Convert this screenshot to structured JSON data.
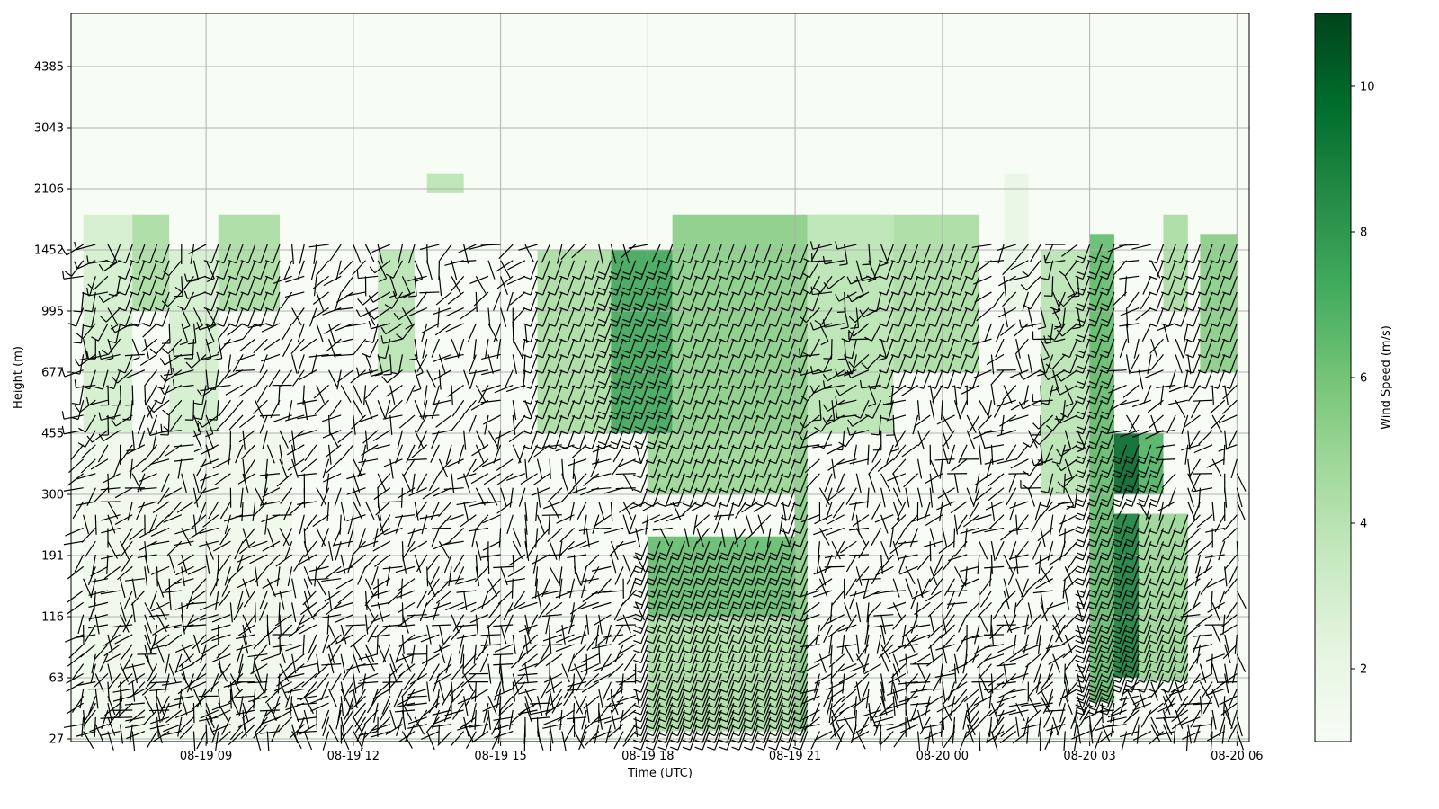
{
  "chart_data": {
    "type": "heatmap",
    "xlabel": "Time (UTC)",
    "ylabel": "Height (m)",
    "colorbar_label": "Wind Speed (m/s)",
    "colormap": "Greens",
    "x_range": [
      "2024-08-19T06:15",
      "2024-08-20T06:15"
    ],
    "x_ticks": [
      {
        "time": "2024-08-19T09:00",
        "label": "08-19 09"
      },
      {
        "time": "2024-08-19T12:00",
        "label": "08-19 12"
      },
      {
        "time": "2024-08-19T15:00",
        "label": "08-19 15"
      },
      {
        "time": "2024-08-19T18:00",
        "label": "08-19 18"
      },
      {
        "time": "2024-08-19T21:00",
        "label": "08-19 21"
      },
      {
        "time": "2024-08-20T00:00",
        "label": "08-20 00"
      },
      {
        "time": "2024-08-20T03:00",
        "label": "08-20 03"
      },
      {
        "time": "2024-08-20T06:00",
        "label": "08-20 06"
      }
    ],
    "height_levels_m": [
      27,
      63,
      116,
      191,
      300,
      455,
      677,
      995,
      1452,
      2106,
      3043,
      4385
    ],
    "colorbar_ticks": [
      2,
      4,
      6,
      8,
      10
    ],
    "colorbar_range": [
      1.0,
      11.0
    ],
    "grid": true,
    "wind_speed_blocks": [
      {
        "t0": "2024-08-19T06:30",
        "t1": "2024-08-19T07:30",
        "h0": 455,
        "h1": 1800,
        "speed": 3.0
      },
      {
        "t0": "2024-08-19T07:30",
        "t1": "2024-08-19T08:15",
        "h0": 995,
        "h1": 1800,
        "speed": 4.5
      },
      {
        "t0": "2024-08-19T08:15",
        "t1": "2024-08-19T09:15",
        "h0": 455,
        "h1": 1452,
        "speed": 3.0
      },
      {
        "t0": "2024-08-19T09:15",
        "t1": "2024-08-19T10:30",
        "h0": 995,
        "h1": 1800,
        "speed": 4.5
      },
      {
        "t0": "2024-08-19T06:30",
        "t1": "2024-08-19T10:45",
        "h0": 27,
        "h1": 455,
        "speed": 1.6
      },
      {
        "t0": "2024-08-19T12:30",
        "t1": "2024-08-19T13:15",
        "h0": 677,
        "h1": 1452,
        "speed": 4.0
      },
      {
        "t0": "2024-08-19T13:30",
        "t1": "2024-08-19T14:15",
        "h0": 2050,
        "h1": 2300,
        "speed": 4.0
      },
      {
        "t0": "2024-08-19T15:45",
        "t1": "2024-08-19T17:15",
        "h0": 455,
        "h1": 1452,
        "speed": 4.5
      },
      {
        "t0": "2024-08-19T17:15",
        "t1": "2024-08-19T18:30",
        "h0": 455,
        "h1": 1452,
        "speed": 7.5
      },
      {
        "t0": "2024-08-19T18:30",
        "t1": "2024-08-19T21:00",
        "h0": 455,
        "h1": 1800,
        "speed": 5.5
      },
      {
        "t0": "2024-08-19T18:00",
        "t1": "2024-08-19T21:00",
        "h0": 300,
        "h1": 455,
        "speed": 5.0
      },
      {
        "t0": "2024-08-19T18:00",
        "t1": "2024-08-19T21:00",
        "h0": 116,
        "h1": 220,
        "speed": 6.5
      },
      {
        "t0": "2024-08-19T18:00",
        "t1": "2024-08-19T21:00",
        "h0": 30,
        "h1": 116,
        "speed": 4.5
      },
      {
        "t0": "2024-08-19T21:00",
        "t1": "2024-08-19T21:15",
        "h0": 30,
        "h1": 1800,
        "speed": 5.5
      },
      {
        "t0": "2024-08-19T21:15",
        "t1": "2024-08-19T23:00",
        "h0": 455,
        "h1": 1800,
        "speed": 4.0
      },
      {
        "t0": "2024-08-19T23:00",
        "t1": "2024-08-20T00:45",
        "h0": 677,
        "h1": 1800,
        "speed": 4.5
      },
      {
        "t0": "2024-08-20T01:15",
        "t1": "2024-08-20T01:45",
        "h0": 1000,
        "h1": 2300,
        "speed": 2.0
      },
      {
        "t0": "2024-08-20T02:00",
        "t1": "2024-08-20T03:15",
        "h0": 300,
        "h1": 1452,
        "speed": 4.0
      },
      {
        "t0": "2024-08-20T03:00",
        "t1": "2024-08-20T03:30",
        "h0": 45,
        "h1": 1600,
        "speed": 6.5
      },
      {
        "t0": "2024-08-20T03:30",
        "t1": "2024-08-20T04:00",
        "h0": 300,
        "h1": 455,
        "speed": 10.0
      },
      {
        "t0": "2024-08-20T03:30",
        "t1": "2024-08-20T04:00",
        "h0": 63,
        "h1": 260,
        "speed": 9.0
      },
      {
        "t0": "2024-08-20T04:00",
        "t1": "2024-08-20T04:30",
        "h0": 300,
        "h1": 455,
        "speed": 7.0
      },
      {
        "t0": "2024-08-20T04:00",
        "t1": "2024-08-20T05:00",
        "h0": 60,
        "h1": 260,
        "speed": 5.0
      },
      {
        "t0": "2024-08-20T04:30",
        "t1": "2024-08-20T05:00",
        "h0": 1000,
        "h1": 1800,
        "speed": 4.5
      },
      {
        "t0": "2024-08-20T05:15",
        "t1": "2024-08-20T06:00",
        "h0": 677,
        "h1": 1600,
        "speed": 5.5
      }
    ],
    "wind_barb_interval_hours": 0.25
  }
}
